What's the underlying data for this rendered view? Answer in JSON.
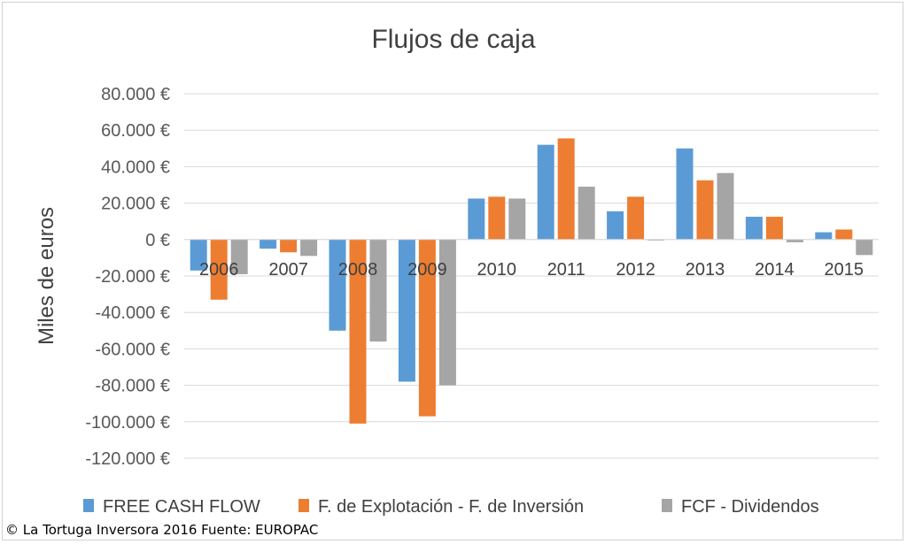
{
  "chart_data": {
    "type": "bar",
    "title": "Flujos de caja",
    "ylabel": "Miles de euros",
    "xlabel": "",
    "categories": [
      "2006",
      "2007",
      "2008",
      "2009",
      "2010",
      "2011",
      "2012",
      "2013",
      "2014",
      "2015"
    ],
    "series": [
      {
        "name": "FREE CASH FLOW",
        "color": "#5b9bd5",
        "values": [
          -17000,
          -5000,
          -50000,
          -78000,
          22500,
          52000,
          15500,
          50000,
          12500,
          4000
        ]
      },
      {
        "name": "F. de Explotación - F. de Inversión",
        "color": "#ed7d31",
        "values": [
          -33000,
          -7000,
          -101000,
          -97000,
          23500,
          55500,
          23500,
          32500,
          12500,
          5500
        ]
      },
      {
        "name": "FCF - Dividendos",
        "color": "#a5a5a5",
        "values": [
          -19000,
          -9000,
          -56000,
          -80000,
          22500,
          29000,
          -500,
          36500,
          -1500,
          -8500
        ]
      }
    ],
    "ylim": [
      -120000,
      80000
    ],
    "yticks": [
      80000,
      60000,
      40000,
      20000,
      0,
      -20000,
      -40000,
      -60000,
      -80000,
      -100000,
      -120000
    ],
    "ytick_labels": [
      "80.000 €",
      "60.000 €",
      "40.000 €",
      "20.000 €",
      "0 €",
      "-20.000 €",
      "-40.000 €",
      "-60.000 €",
      "-80.000 €",
      "-100.000 €",
      "-120.000 €"
    ],
    "grid": true,
    "legend_position": "bottom"
  },
  "credit": "© La Tortuga Inversora 2016 Fuente: EUROPAC"
}
